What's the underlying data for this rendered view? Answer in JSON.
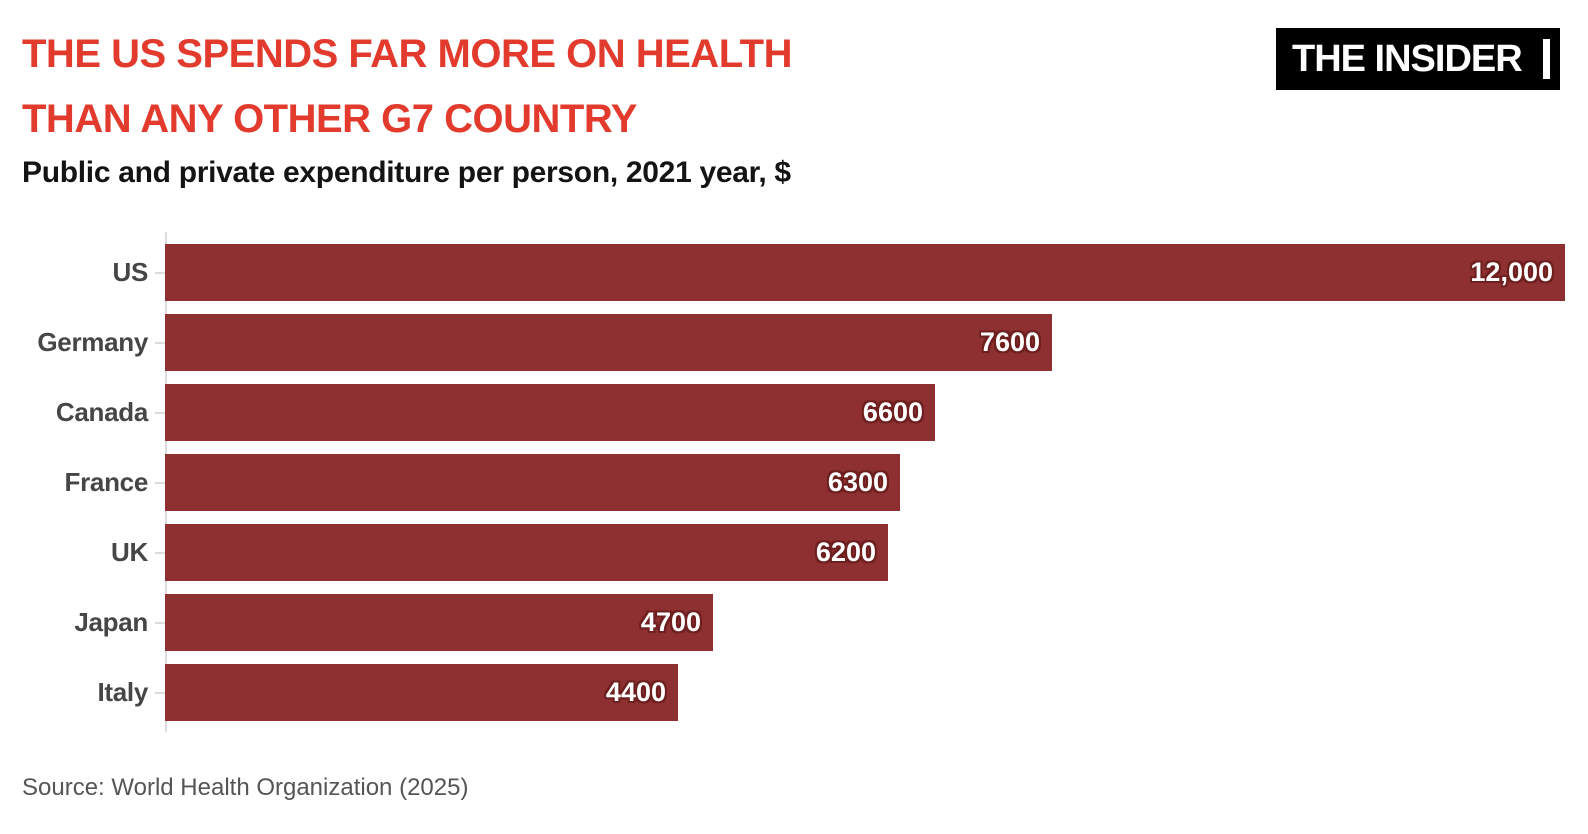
{
  "header": {
    "title_line1": "THE US SPENDS FAR MORE ON HEALTH",
    "title_line2": "THAN ANY OTHER G7 COUNTRY",
    "title_color": "#e23b2e",
    "subtitle": "Public and private expenditure per person, 2021 year, $"
  },
  "logo": {
    "text": "THE INSIDER",
    "bg_color": "#000000",
    "text_color": "#ffffff"
  },
  "chart_data": {
    "type": "bar",
    "orientation": "horizontal",
    "title": "THE US SPENDS FAR MORE ON HEALTH THAN ANY OTHER G7 COUNTRY",
    "subtitle": "Public and private expenditure per person, 2021 year, $",
    "categories": [
      "US",
      "Germany",
      "Canada",
      "France",
      "UK",
      "Japan",
      "Italy"
    ],
    "values": [
      12000,
      7600,
      6600,
      6300,
      6200,
      4700,
      4400
    ],
    "value_labels": [
      "12,000",
      "7600",
      "6600",
      "6300",
      "6200",
      "4700",
      "4400"
    ],
    "xlim": [
      0,
      12000
    ],
    "grid": false,
    "legend": false,
    "bar_color": "#8e3032",
    "value_halo_color": "#6e1f1f",
    "axis_color": "#dcdcdc",
    "category_label_color": "#464646"
  },
  "footer": {
    "source": "Source: World Health Organization (2025)"
  }
}
